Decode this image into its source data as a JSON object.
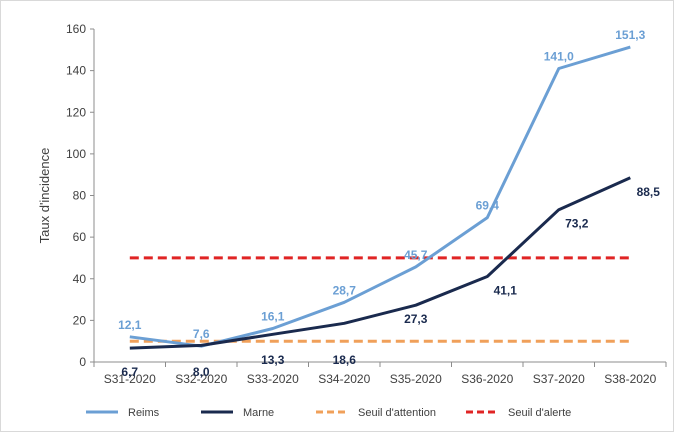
{
  "chart_data": {
    "type": "line",
    "title": "",
    "xlabel": "",
    "ylabel": "Taux d'incidence",
    "categories": [
      "S31-2020",
      "S32-2020",
      "S33-2020",
      "S34-2020",
      "S35-2020",
      "S36-2020",
      "S37-2020",
      "S38-2020"
    ],
    "ylim": [
      0,
      160
    ],
    "yticks": [
      0,
      20,
      40,
      60,
      80,
      100,
      120,
      140,
      160
    ],
    "grid": false,
    "legend_position": "bottom",
    "series": [
      {
        "name": "Reims",
        "color": "#6b9fd4",
        "style": "solid",
        "values": [
          12.1,
          7.6,
          16.1,
          28.7,
          45.7,
          69.4,
          141.0,
          151.3
        ],
        "labels": [
          "12,1",
          "7,6",
          "16,1",
          "28,7",
          "45,7",
          "69,4",
          "141,0",
          "151,3"
        ]
      },
      {
        "name": "Marne",
        "color": "#1a2a4e",
        "style": "solid",
        "values": [
          6.7,
          8.0,
          13.3,
          18.6,
          27.3,
          41.1,
          73.2,
          88.5
        ],
        "labels": [
          "6,7",
          "8,0",
          "13,3",
          "18,6",
          "27,3",
          "41,1",
          "73,2",
          "88,5"
        ]
      },
      {
        "name": "Seuil d'attention",
        "color": "#f0a05a",
        "style": "dashed",
        "values": [
          10,
          10,
          10,
          10,
          10,
          10,
          10,
          10
        ]
      },
      {
        "name": "Seuil d'alerte",
        "color": "#e02424",
        "style": "dashed",
        "values": [
          50,
          50,
          50,
          50,
          50,
          50,
          50,
          50
        ]
      }
    ]
  }
}
